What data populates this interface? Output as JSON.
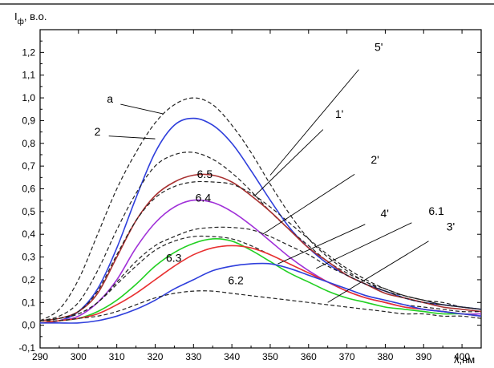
{
  "chart_data": {
    "type": "line",
    "title": "",
    "ylabel": {
      "main": "I",
      "sub": "ф",
      "rest": ", в.о."
    },
    "xlabel": "λ,нм",
    "xlim": [
      290,
      405
    ],
    "ylim": [
      -0.1,
      1.3
    ],
    "xticks": [
      290,
      300,
      310,
      320,
      330,
      340,
      350,
      360,
      370,
      380,
      390,
      400
    ],
    "yticks": [
      -0.1,
      0.0,
      0.1,
      0.2,
      0.3,
      0.4,
      0.5,
      0.6,
      0.7,
      0.8,
      0.9,
      1.0,
      1.1,
      1.2
    ],
    "ytick_labels": [
      "-0,1",
      "0,0",
      "0,1",
      "0,2",
      "0,3",
      "0,4",
      "0,5",
      "0,6",
      "0,7",
      "0,8",
      "0,9",
      "1,0",
      "1,1",
      "1,2"
    ],
    "grid": false,
    "series": [
      {
        "name": "a",
        "color": "#222222",
        "style": "dashed",
        "x": [
          290,
          295,
          300,
          305,
          310,
          315,
          320,
          325,
          330,
          335,
          340,
          345,
          350,
          355,
          360,
          365,
          370,
          375,
          380,
          385,
          390,
          395,
          400,
          405
        ],
        "y": [
          0.02,
          0.07,
          0.2,
          0.4,
          0.6,
          0.76,
          0.89,
          0.97,
          1.0,
          0.97,
          0.88,
          0.76,
          0.62,
          0.49,
          0.38,
          0.3,
          0.24,
          0.19,
          0.16,
          0.13,
          0.11,
          0.1,
          0.08,
          0.07
        ]
      },
      {
        "name": "2",
        "color": "#2f3fdc",
        "style": "solid",
        "x": [
          290,
          295,
          300,
          305,
          310,
          315,
          320,
          325,
          330,
          335,
          340,
          345,
          350,
          355,
          360,
          365,
          370,
          375,
          380,
          385,
          390,
          395,
          400,
          405
        ],
        "y": [
          0.01,
          0.02,
          0.06,
          0.16,
          0.34,
          0.56,
          0.76,
          0.88,
          0.91,
          0.88,
          0.8,
          0.68,
          0.55,
          0.43,
          0.34,
          0.27,
          0.22,
          0.18,
          0.15,
          0.12,
          0.1,
          0.09,
          0.08,
          0.07
        ]
      },
      {
        "name": "5'",
        "color": "#222222",
        "style": "dashed",
        "x": [
          290,
          295,
          300,
          305,
          310,
          315,
          320,
          325,
          330,
          335,
          340,
          345,
          350,
          355,
          360,
          365,
          370,
          375,
          380,
          385,
          390,
          395,
          400,
          405
        ],
        "y": [
          0.02,
          0.04,
          0.1,
          0.24,
          0.42,
          0.58,
          0.7,
          0.75,
          0.76,
          0.73,
          0.67,
          0.59,
          0.5,
          0.42,
          0.35,
          0.28,
          0.23,
          0.19,
          0.15,
          0.13,
          0.11,
          0.09,
          0.08,
          0.07
        ]
      },
      {
        "name": "1'",
        "color": "#a83030",
        "style": "solid",
        "x": [
          290,
          295,
          300,
          305,
          310,
          315,
          320,
          325,
          330,
          335,
          340,
          345,
          350,
          355,
          360,
          365,
          370,
          375,
          380,
          385,
          390,
          395,
          400,
          405
        ],
        "y": [
          0.02,
          0.03,
          0.06,
          0.14,
          0.3,
          0.46,
          0.57,
          0.63,
          0.66,
          0.66,
          0.63,
          0.57,
          0.5,
          0.42,
          0.34,
          0.28,
          0.22,
          0.18,
          0.14,
          0.12,
          0.1,
          0.08,
          0.07,
          0.06
        ]
      },
      {
        "name": "6.5",
        "color": "#222222",
        "style": "dashed",
        "x": [
          290,
          295,
          300,
          305,
          310,
          315,
          320,
          325,
          330,
          335,
          340,
          345,
          350,
          355,
          360,
          365,
          370,
          375,
          380,
          385,
          390,
          395,
          400,
          405
        ],
        "y": [
          0.02,
          0.03,
          0.06,
          0.15,
          0.31,
          0.46,
          0.56,
          0.61,
          0.63,
          0.63,
          0.62,
          0.58,
          0.52,
          0.45,
          0.38,
          0.31,
          0.25,
          0.2,
          0.16,
          0.13,
          0.11,
          0.09,
          0.08,
          0.07
        ]
      },
      {
        "name": "6.4",
        "color": "#a030d8",
        "style": "solid",
        "x": [
          290,
          295,
          300,
          305,
          310,
          315,
          320,
          325,
          330,
          335,
          340,
          345,
          350,
          355,
          360,
          365,
          370,
          375,
          380,
          385,
          390,
          395,
          400,
          405
        ],
        "y": [
          0.01,
          0.02,
          0.04,
          0.1,
          0.2,
          0.34,
          0.45,
          0.52,
          0.55,
          0.54,
          0.5,
          0.44,
          0.37,
          0.3,
          0.24,
          0.19,
          0.15,
          0.12,
          0.1,
          0.08,
          0.07,
          0.06,
          0.05,
          0.05
        ]
      },
      {
        "name": "2'",
        "color": "#222222",
        "style": "dashed",
        "x": [
          290,
          295,
          300,
          305,
          310,
          315,
          320,
          325,
          330,
          335,
          340,
          345,
          350,
          355,
          360,
          365,
          370,
          375,
          380,
          385,
          390,
          395,
          400,
          405
        ],
        "y": [
          0.02,
          0.03,
          0.05,
          0.1,
          0.19,
          0.28,
          0.35,
          0.39,
          0.42,
          0.43,
          0.43,
          0.42,
          0.39,
          0.35,
          0.31,
          0.26,
          0.22,
          0.18,
          0.15,
          0.12,
          0.1,
          0.09,
          0.08,
          0.07
        ]
      },
      {
        "name": "6.3",
        "color": "#222222",
        "style": "dashed",
        "x": [
          290,
          295,
          300,
          305,
          310,
          315,
          320,
          325,
          330,
          335,
          340,
          345,
          350,
          355,
          360,
          365,
          370,
          375,
          380,
          385,
          390,
          395,
          400,
          405
        ],
        "y": [
          0.02,
          0.03,
          0.05,
          0.1,
          0.18,
          0.26,
          0.33,
          0.37,
          0.39,
          0.39,
          0.38,
          0.35,
          0.31,
          0.27,
          0.23,
          0.19,
          0.16,
          0.13,
          0.11,
          0.09,
          0.08,
          0.07,
          0.06,
          0.06
        ]
      },
      {
        "name": "4'",
        "color": "#22d022",
        "style": "solid",
        "x": [
          290,
          295,
          300,
          305,
          310,
          315,
          320,
          325,
          330,
          335,
          340,
          345,
          350,
          355,
          360,
          365,
          370,
          375,
          380,
          385,
          390,
          395,
          400,
          405
        ],
        "y": [
          0.01,
          0.02,
          0.03,
          0.06,
          0.11,
          0.18,
          0.26,
          0.32,
          0.36,
          0.38,
          0.37,
          0.33,
          0.28,
          0.23,
          0.19,
          0.15,
          0.12,
          0.1,
          0.08,
          0.07,
          0.06,
          0.05,
          0.05,
          0.04
        ]
      },
      {
        "name": "6.1",
        "color": "#e83030",
        "style": "solid",
        "x": [
          290,
          295,
          300,
          305,
          310,
          315,
          320,
          325,
          330,
          335,
          340,
          345,
          350,
          355,
          360,
          365,
          370,
          375,
          380,
          385,
          390,
          395,
          400,
          405
        ],
        "y": [
          0.01,
          0.02,
          0.03,
          0.05,
          0.09,
          0.14,
          0.2,
          0.26,
          0.31,
          0.34,
          0.35,
          0.34,
          0.31,
          0.27,
          0.23,
          0.19,
          0.15,
          0.12,
          0.1,
          0.08,
          0.07,
          0.06,
          0.05,
          0.04
        ]
      },
      {
        "name": "6.2",
        "color": "#2f3fdc",
        "style": "solid",
        "x": [
          290,
          295,
          300,
          305,
          310,
          315,
          320,
          325,
          330,
          335,
          340,
          345,
          350,
          355,
          360,
          365,
          370,
          375,
          380,
          385,
          390,
          395,
          400,
          405
        ],
        "y": [
          0.01,
          0.01,
          0.01,
          0.02,
          0.04,
          0.07,
          0.11,
          0.16,
          0.2,
          0.24,
          0.26,
          0.27,
          0.27,
          0.25,
          0.22,
          0.19,
          0.16,
          0.13,
          0.11,
          0.09,
          0.07,
          0.06,
          0.05,
          0.04
        ]
      },
      {
        "name": "3'",
        "color": "#222222",
        "style": "dashed",
        "x": [
          290,
          295,
          300,
          305,
          310,
          315,
          320,
          325,
          330,
          335,
          340,
          345,
          350,
          355,
          360,
          365,
          370,
          375,
          380,
          385,
          390,
          395,
          400,
          405
        ],
        "y": [
          0.02,
          0.02,
          0.03,
          0.04,
          0.06,
          0.09,
          0.12,
          0.14,
          0.15,
          0.15,
          0.14,
          0.13,
          0.12,
          0.11,
          0.1,
          0.09,
          0.08,
          0.07,
          0.06,
          0.05,
          0.05,
          0.04,
          0.04,
          0.03
        ]
      }
    ],
    "annotations": [
      {
        "text": "a",
        "series": "a",
        "at": [
          322,
          0.93
        ]
      },
      {
        "text": "2",
        "series": "2",
        "at": [
          320,
          0.82
        ]
      },
      {
        "text": "5'",
        "series": "5'",
        "at": [
          350,
          0.66
        ]
      },
      {
        "text": "1'",
        "series": "1'",
        "at": [
          346,
          0.57
        ]
      },
      {
        "text": "6.5",
        "series": "6.5",
        "at": [
          333,
          0.64
        ]
      },
      {
        "text": "6.4",
        "series": "6.4",
        "at": [
          333,
          0.53
        ]
      },
      {
        "text": "2'",
        "series": "2'",
        "at": [
          348,
          0.4
        ]
      },
      {
        "text": "4'",
        "series": "4'",
        "at": [
          352,
          0.27
        ]
      },
      {
        "text": "6.3",
        "series": "6.3",
        "at": [
          327,
          0.3
        ]
      },
      {
        "text": "6.1",
        "series": "6.1",
        "at": [
          362,
          0.25
        ]
      },
      {
        "text": "6.2",
        "series": "6.2",
        "at": [
          339,
          0.18
        ]
      },
      {
        "text": "3'",
        "series": "3'",
        "at": [
          365,
          0.1
        ]
      }
    ]
  }
}
